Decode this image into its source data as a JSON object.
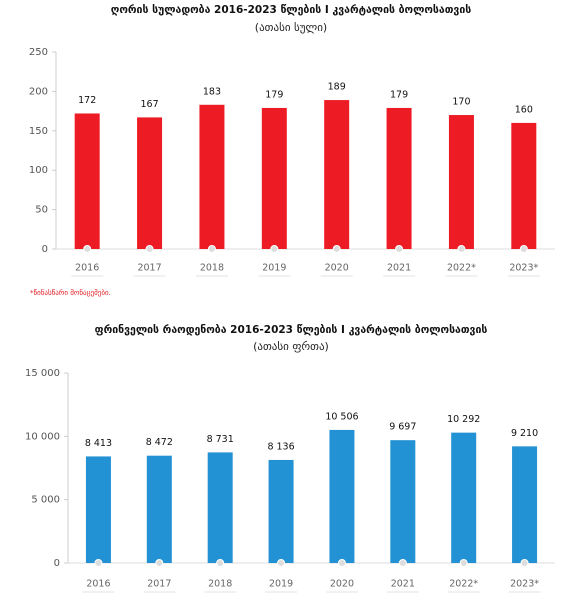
{
  "chart_data": [
    {
      "type": "bar",
      "title": "ღორის სულადობა 2016-2023 წლების I კვარტალის ბოლოსათვის",
      "subtitle": "(ათასი სული)",
      "categories": [
        "2016",
        "2017",
        "2018",
        "2019",
        "2020",
        "2021",
        "2022*",
        "2023*"
      ],
      "values": [
        172,
        167,
        183,
        179,
        189,
        179,
        170,
        160
      ],
      "color": "#ed1c24",
      "ylim": [
        0,
        250
      ],
      "yticks": [
        0,
        50,
        100,
        150,
        200,
        250
      ],
      "note": "*წინასწარი მონაცემები."
    },
    {
      "type": "bar",
      "title": "ფრინველის რაოდენობა 2016-2023 წლების I კვარტალის ბოლოსათვის",
      "subtitle": "(ათასი ფრთა)",
      "categories": [
        "2016",
        "2017",
        "2018",
        "2019",
        "2020",
        "2021",
        "2022*",
        "2023*"
      ],
      "values": [
        8413,
        8472,
        8731,
        8136,
        10506,
        9697,
        10292,
        9210
      ],
      "value_labels": [
        "8 413",
        "8 472",
        "8 731",
        "8 136",
        "10 506",
        "9 697",
        "10 292",
        "9 210"
      ],
      "color": "#2292d4",
      "ylim": [
        0,
        15000
      ],
      "yticks": [
        0,
        {
          "value": 5000,
          "label": "5 000"
        },
        {
          "value": 10000,
          "label": "10 000"
        },
        {
          "value": 15000,
          "label": "15 000"
        }
      ]
    }
  ]
}
